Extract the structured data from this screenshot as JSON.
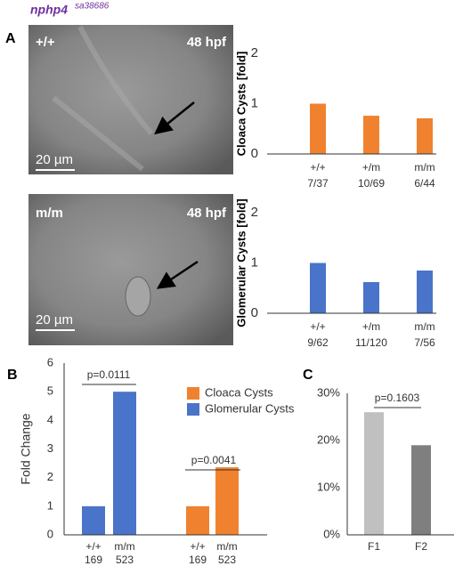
{
  "figure": {
    "title": "nphp4",
    "allele": "sa38686",
    "panels": [
      "A",
      "B",
      "C"
    ],
    "images": [
      {
        "genotype": "+/+",
        "stage": "48 hpf",
        "scale": "20 µm"
      },
      {
        "genotype": "m/m",
        "stage": "48 hpf",
        "scale": "20 µm"
      }
    ]
  },
  "chart_data": [
    {
      "type": "bar",
      "y_label": "Cloaca Cysts [fold]",
      "categories": [
        "+/+",
        "+/m",
        "m/m"
      ],
      "counts": [
        "7/37",
        "10/69",
        "6/44"
      ],
      "values": [
        1.0,
        0.76,
        0.71
      ],
      "color": "#f0822f",
      "ylim": [
        0,
        2
      ],
      "yticks": [
        0,
        1,
        2
      ]
    },
    {
      "type": "bar",
      "y_label": "Glomerular Cysts [fold]",
      "categories": [
        "+/+",
        "+/m",
        "m/m"
      ],
      "counts": [
        "9/62",
        "11/120",
        "7/56"
      ],
      "values": [
        1.0,
        0.62,
        0.85
      ],
      "color": "#4a74c9",
      "ylim": [
        0,
        2
      ],
      "yticks": [
        0,
        1,
        2
      ]
    },
    {
      "type": "bar",
      "y_label": "Fold Change",
      "categories": [
        "+/+",
        "m/m",
        "+/+",
        "m/m"
      ],
      "counts": [
        "169",
        "523",
        "169",
        "523"
      ],
      "series": [
        {
          "name": "Cloaca Cysts",
          "color": "#f0822f",
          "values": [
            null,
            null,
            1,
            2.36
          ]
        },
        {
          "name": "Glomerular Cysts",
          "color": "#4a74c9",
          "values": [
            1,
            5,
            null,
            null
          ]
        }
      ],
      "ylim": [
        0,
        6
      ],
      "yticks": [
        0,
        1,
        2,
        3,
        4,
        5,
        6
      ],
      "legend": "top right",
      "annotations": [
        {
          "text": "p=0.0111"
        },
        {
          "text": "p=0.0041"
        }
      ]
    },
    {
      "type": "bar",
      "categories": [
        "F1",
        "F2"
      ],
      "values": [
        26,
        19
      ],
      "colors": [
        "#c0c0c0",
        "#7f7f7f"
      ],
      "ylim": [
        0,
        30
      ],
      "yticks": [
        {
          "value": 0,
          "label": "0%"
        },
        {
          "value": 10,
          "label": "10%"
        },
        {
          "value": 20,
          "label": "20%"
        },
        {
          "value": 30,
          "label": "30%"
        }
      ],
      "annotations": [
        {
          "text": "p=0.1603"
        }
      ]
    }
  ]
}
